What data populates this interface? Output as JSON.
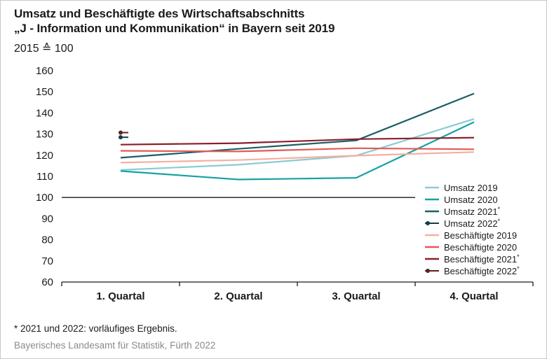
{
  "title_line1": "Umsatz und Beschäftigte des Wirtschaftsabschnitts",
  "title_line2": "„J - Information und Kommunikation“ in Bayern seit 2019",
  "subtitle": "2015 ≙ 100",
  "footnote": "*  2021 und 2022: vorläufiges Ergebnis.",
  "source": "Bayerisches Landesamt für Statistik, Fürth 2022",
  "chart_data": {
    "type": "line",
    "categories": [
      "1. Quartal",
      "2. Quartal",
      "3. Quartal",
      "4. Quartal"
    ],
    "ylim": [
      60,
      160
    ],
    "yticks": [
      60,
      70,
      80,
      90,
      100,
      110,
      120,
      130,
      140,
      150,
      160
    ],
    "reference_line": 100,
    "grid": false,
    "legend_position": "right",
    "series": [
      {
        "name": "Umsatz 2019",
        "legend_label": "Umsatz 2019",
        "color": "#8ccbd3",
        "values": [
          113,
          115.5,
          119.8,
          137.2
        ]
      },
      {
        "name": "Umsatz 2020",
        "legend_label": "Umsatz 2020",
        "color": "#17a2a4",
        "values": [
          112.5,
          108.5,
          109.3,
          135.7
        ]
      },
      {
        "name": "Umsatz 2021*",
        "legend_label": "Umsatz 2021",
        "sup": "*",
        "color": "#1b5f66",
        "values": [
          118.8,
          123,
          127,
          149.2
        ]
      },
      {
        "name": "Umsatz 2022*",
        "legend_label": "Umsatz 2022",
        "sup": "*",
        "color": "#123f42",
        "marker": true,
        "values": [
          128.5,
          null,
          null,
          null
        ]
      },
      {
        "name": "Beschäftigte 2019",
        "legend_label": "Beschäftigte 2019",
        "color": "#f3b1a0",
        "values": [
          116.5,
          117.7,
          119.8,
          121.5
        ]
      },
      {
        "name": "Beschäftigte 2020",
        "legend_label": "Beschäftigte 2020",
        "color": "#e05a57",
        "values": [
          122.1,
          121.8,
          123.3,
          122.8
        ]
      },
      {
        "name": "Beschäftigte 2021*",
        "legend_label": "Beschäftigte 2021",
        "sup": "*",
        "color": "#8c1d2a",
        "values": [
          125,
          125.7,
          127.6,
          128.3
        ]
      },
      {
        "name": "Beschäftigte 2022*",
        "legend_label": "Beschäftigte 2022",
        "sup": "*",
        "color": "#5a2124",
        "marker": true,
        "values": [
          130.7,
          null,
          null,
          null
        ]
      }
    ]
  }
}
